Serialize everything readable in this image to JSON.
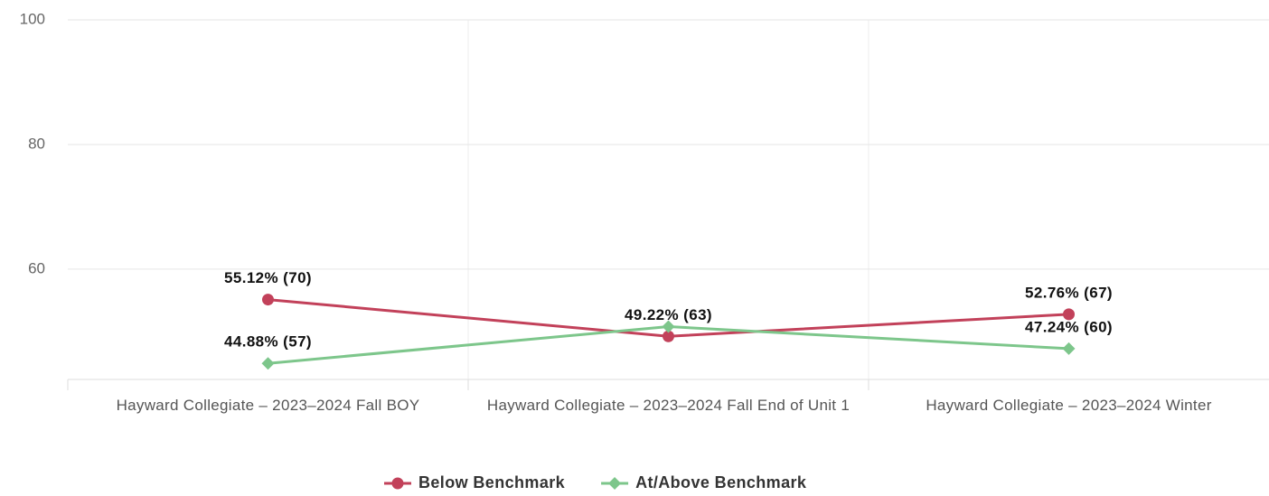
{
  "chart_data": {
    "type": "line",
    "categories": [
      "Hayward Collegiate – 2023–2024 Fall BOY",
      "Hayward Collegiate – 2023–2024 Fall End of Unit 1",
      "Hayward Collegiate – 2023–2024 Winter"
    ],
    "series": [
      {
        "name": "Below Benchmark",
        "color": "#c2415a",
        "marker": "circle",
        "values": [
          55.12,
          49.22,
          52.76
        ],
        "value_labels": [
          "55.12% (70)",
          "49.22% (63)",
          "52.76% (67)"
        ]
      },
      {
        "name": "At/Above Benchmark",
        "color": "#7dc68b",
        "marker": "diamond",
        "values": [
          44.88,
          50.78,
          47.24
        ],
        "value_labels": [
          "44.88% (57)",
          null,
          "47.24% (60)"
        ]
      }
    ],
    "ylim": [
      42.3,
      100
    ],
    "yticks": [
      60,
      80,
      100
    ],
    "grid": true,
    "legend": "bottom"
  }
}
